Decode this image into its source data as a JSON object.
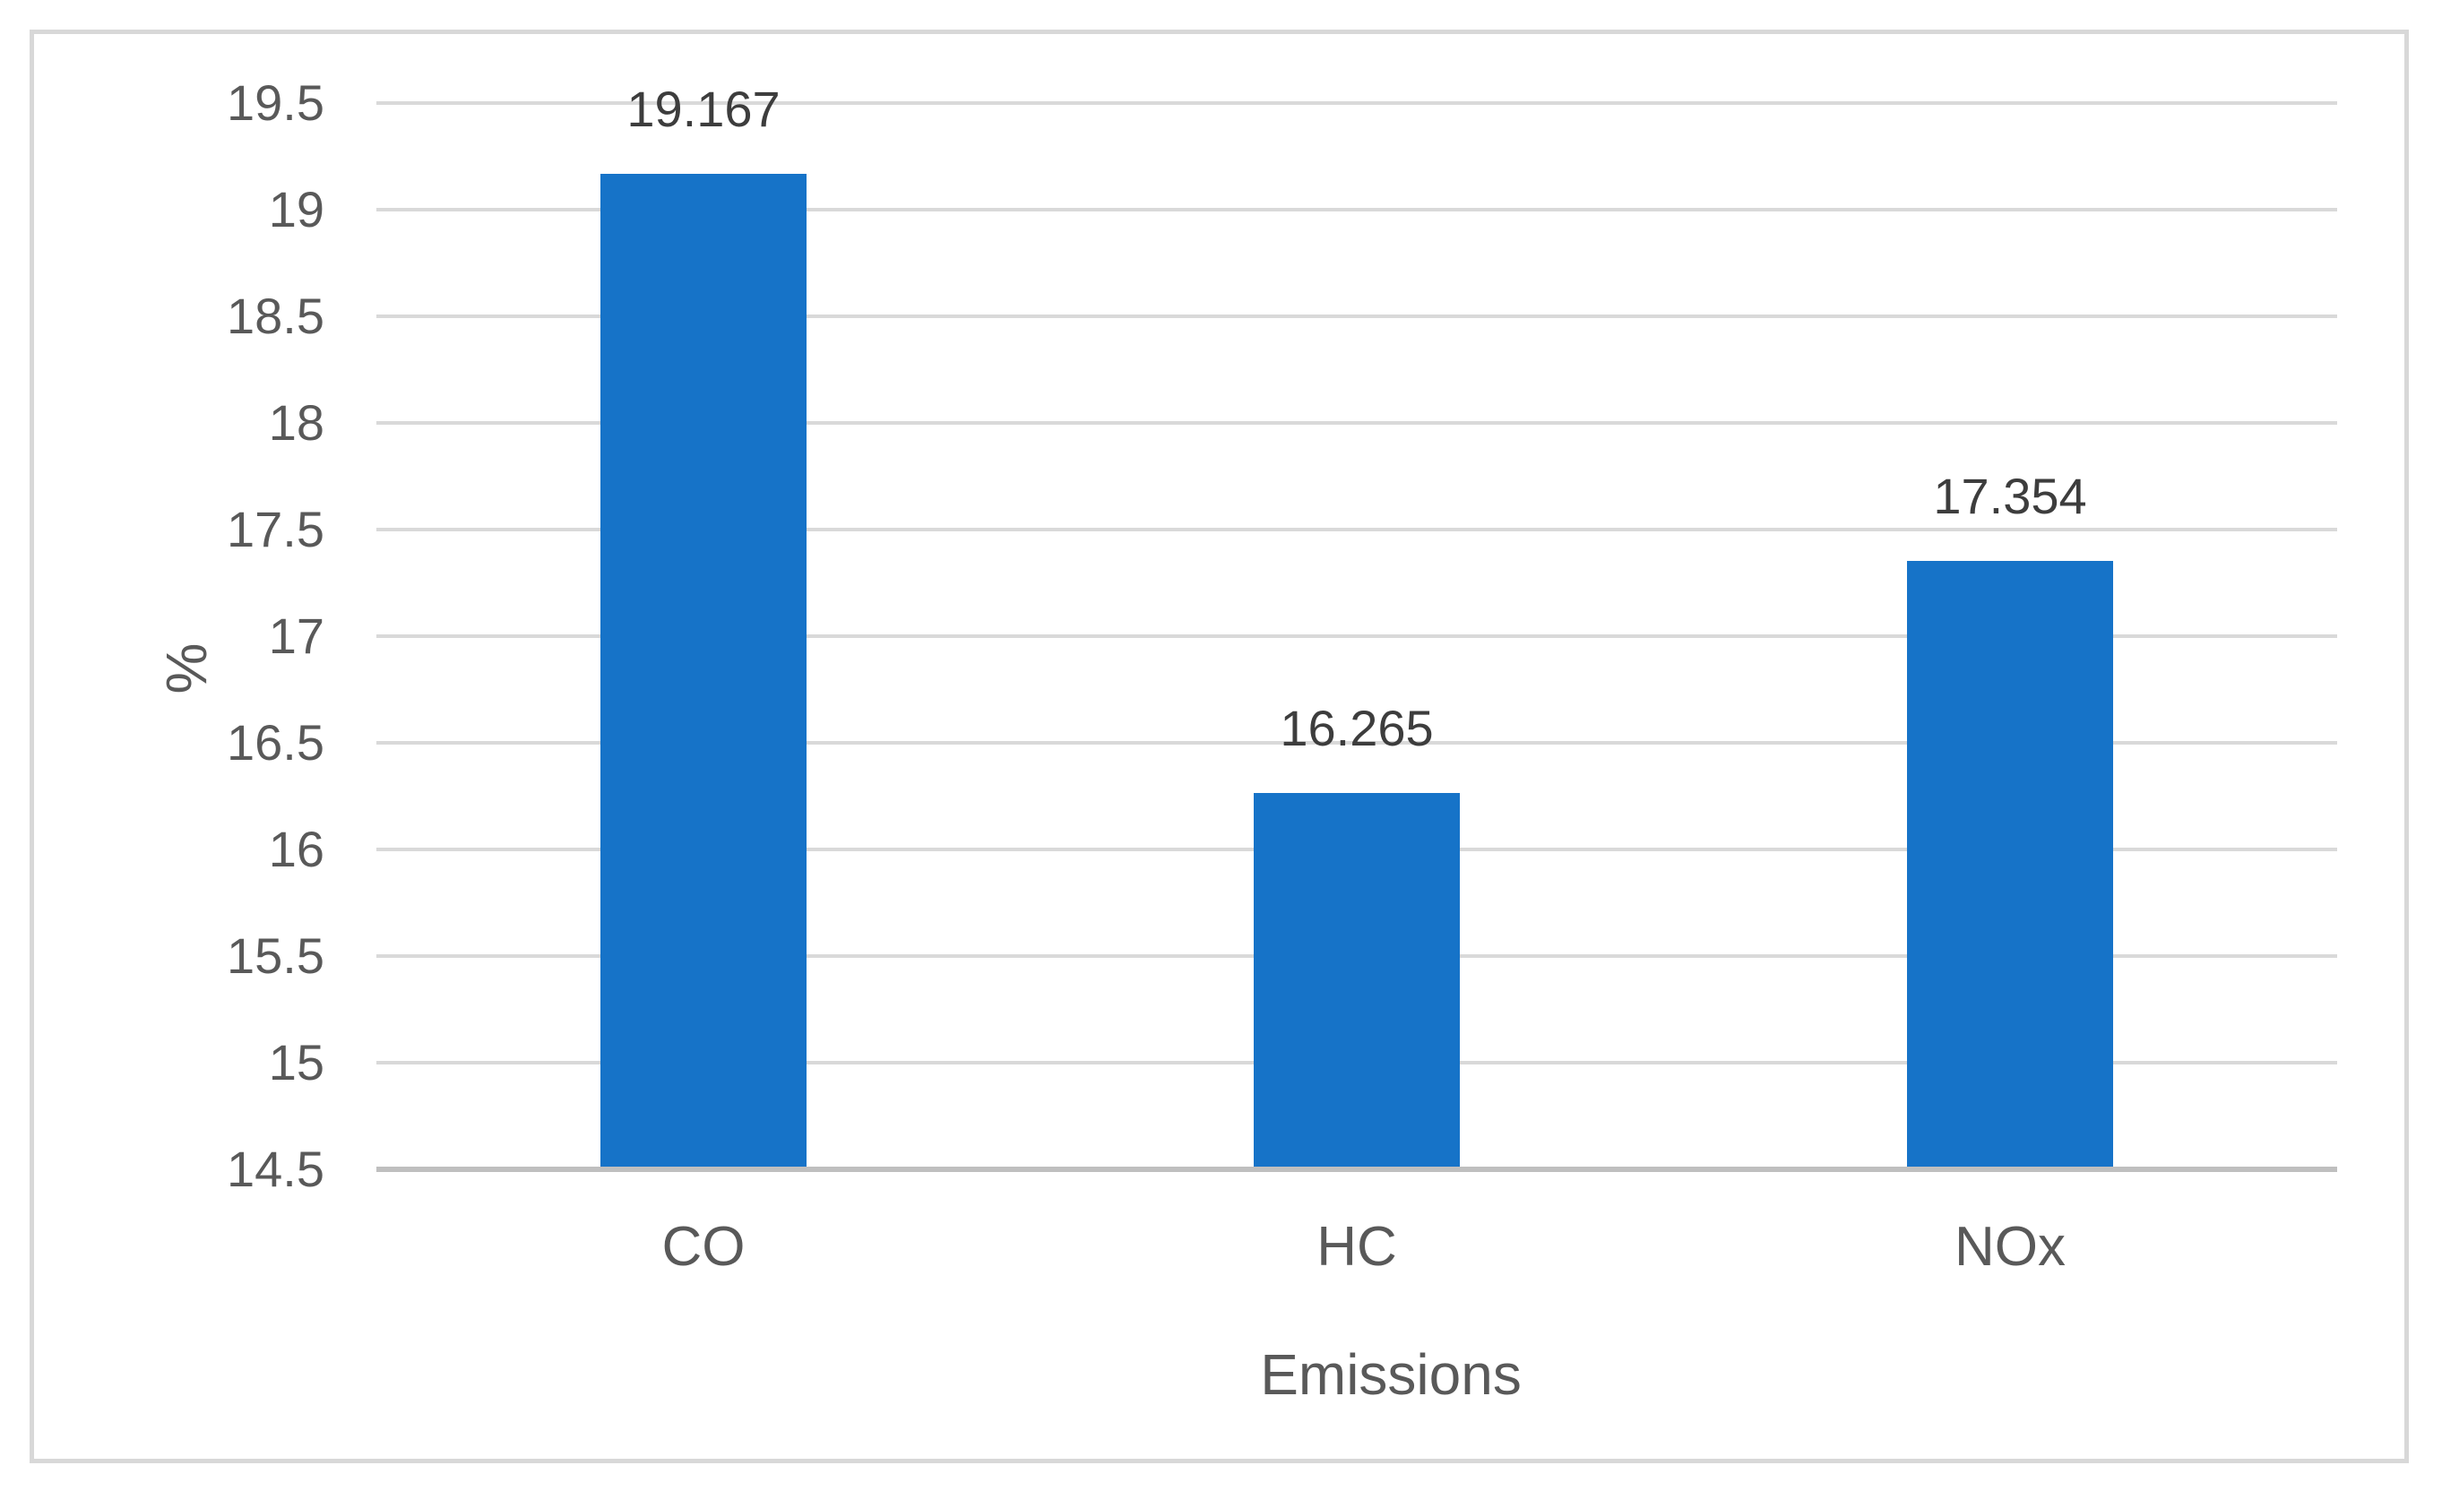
{
  "chart_data": {
    "type": "bar",
    "categories": [
      "CO",
      "HC",
      "NOx"
    ],
    "values": [
      19.167,
      16.265,
      17.354
    ],
    "data_labels": [
      "19.167",
      "16.265",
      "17.354"
    ],
    "title": "",
    "xlabel": "Emissions",
    "ylabel": "%",
    "ylim": [
      14.5,
      19.5
    ],
    "ytick_step": 0.5,
    "yticks": [
      19.5,
      19,
      18.5,
      18,
      17.5,
      17,
      16.5,
      16,
      15.5,
      15,
      14.5
    ],
    "ytick_labels": [
      "19.5",
      "19",
      "18.5",
      "18",
      "17.5",
      "17",
      "16.5",
      "16",
      "15.5",
      "15",
      "14.5"
    ],
    "grid": true,
    "legend": false,
    "colors": {
      "bar": "#1673c8",
      "gridline": "#d9d9d9",
      "axis_line": "#bfbfbf",
      "tick_label": "#595959",
      "data_label": "#3d3d3d",
      "category_label": "#595959",
      "axis_title": "#595959",
      "chart_border": "#d8d8d8",
      "background": "#ffffff"
    }
  }
}
